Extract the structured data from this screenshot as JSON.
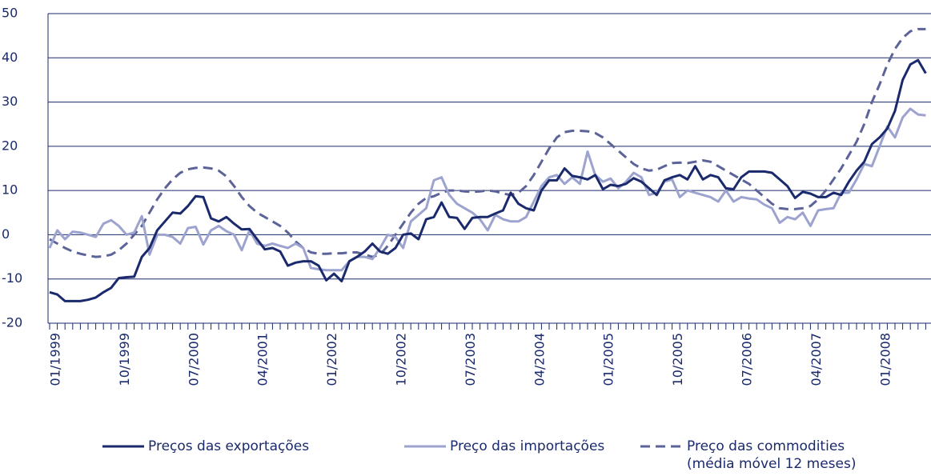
{
  "chart_data": {
    "type": "line",
    "categories": [
      "01/1999",
      null,
      null,
      null,
      null,
      null,
      null,
      null,
      null,
      "10/1999",
      null,
      null,
      null,
      null,
      null,
      null,
      null,
      null,
      "07/2000",
      null,
      null,
      null,
      null,
      null,
      null,
      null,
      null,
      "04/2001",
      null,
      null,
      null,
      null,
      null,
      null,
      null,
      null,
      "01/2002",
      null,
      null,
      null,
      null,
      null,
      null,
      null,
      null,
      "10/2002",
      null,
      null,
      null,
      null,
      null,
      null,
      null,
      null,
      "07/2003",
      null,
      null,
      null,
      null,
      null,
      null,
      null,
      null,
      "04/2004",
      null,
      null,
      null,
      null,
      null,
      null,
      null,
      null,
      "01/2005",
      null,
      null,
      null,
      null,
      null,
      null,
      null,
      null,
      "10/2005",
      null,
      null,
      null,
      null,
      null,
      null,
      null,
      null,
      "07/2006",
      null,
      null,
      null,
      null,
      null,
      null,
      null,
      null,
      "04/2007",
      null,
      null,
      null,
      null,
      null,
      null,
      null,
      null,
      "01/2008",
      null,
      null,
      null,
      null,
      null,
      null
    ],
    "series": [
      {
        "name": "Preços das exportações",
        "color": "#1a2a6c",
        "dash": false,
        "values": [
          -13,
          -13.5,
          -15,
          -15,
          -15,
          -14.7,
          -14.2,
          -13,
          -12,
          -9.8,
          -9.6,
          -9.5,
          -5,
          -3,
          1,
          3,
          5,
          4.8,
          6.5,
          8.7,
          8.5,
          3.7,
          3,
          4,
          2.5,
          1.2,
          1.3,
          -1,
          -3.3,
          -3,
          -3.8,
          -7,
          -6.3,
          -6,
          -6,
          -7,
          -10.3,
          -8.8,
          -10.5,
          -6,
          -5,
          -3.8,
          -2,
          -3.8,
          -4.3,
          -3,
          0,
          0.3,
          -1,
          3.5,
          4,
          7.3,
          4,
          3.8,
          1.3,
          3.8,
          4,
          4,
          4.8,
          5.5,
          9.5,
          7,
          6,
          5.5,
          10,
          12.3,
          12.3,
          15,
          13.3,
          13,
          12.5,
          13.5,
          10.3,
          11.3,
          11,
          11.5,
          12.8,
          12,
          10.5,
          9,
          12.3,
          13,
          13.5,
          12.5,
          15.5,
          12.5,
          13.5,
          13,
          10.5,
          10.3,
          13,
          14.3,
          14.3,
          14.3,
          14,
          12.5,
          11,
          8.3,
          9.7,
          9.3,
          8.5,
          8.5,
          9.5,
          9,
          12,
          14.5,
          16.5,
          20.5,
          22,
          24,
          28,
          35,
          38.5,
          39.5,
          36.5
        ]
      },
      {
        "name": "Preço das importações",
        "color": "#9da3cf",
        "dash": false,
        "values": [
          -3,
          1,
          -1,
          0.7,
          0.5,
          0,
          -0.5,
          2.5,
          3.3,
          2,
          0,
          0.5,
          4.2,
          -4.5,
          0,
          0,
          -0.5,
          -2,
          1.5,
          1.8,
          -2.2,
          1,
          2,
          0.8,
          0,
          -3.5,
          1,
          -2,
          -2.5,
          -2,
          -2.5,
          -3,
          -2,
          -3,
          -7.5,
          -7.8,
          -8,
          -8,
          -8,
          -6,
          -5,
          -5,
          -5.5,
          -3,
          0,
          -0.5,
          -3,
          3,
          4.5,
          6,
          12.3,
          13,
          9,
          7,
          6,
          5,
          3.5,
          1,
          4.5,
          3.5,
          3,
          3,
          4,
          7.5,
          11,
          13,
          13.5,
          11.5,
          13,
          11.5,
          18.8,
          13.5,
          12,
          12.7,
          10.5,
          12,
          14,
          13,
          9,
          9.5,
          12,
          12.5,
          8.5,
          10,
          9.5,
          9,
          8.5,
          7.5,
          10,
          7.5,
          8.5,
          8.2,
          8,
          6.8,
          6,
          2.7,
          4,
          3.5,
          5,
          2,
          5.5,
          5.8,
          6,
          9.5,
          9.5,
          12.5,
          16,
          15.5,
          20,
          24.5,
          22,
          26.5,
          28.5,
          27.2,
          27
        ]
      },
      {
        "name": "Preço das commodities (média móvel 12 meses)",
        "color": "#5c6398",
        "dash": true,
        "values": [
          -1,
          -2,
          -3,
          -3.8,
          -4.3,
          -4.7,
          -5,
          -4.9,
          -4.5,
          -3.5,
          -2,
          0,
          2,
          5,
          8,
          10.5,
          12.5,
          14,
          14.8,
          15.1,
          15.2,
          15,
          14.5,
          13.2,
          11,
          8.5,
          6.5,
          5,
          4,
          3,
          2,
          0.5,
          -1.5,
          -3,
          -4,
          -4.3,
          -4.3,
          -4.2,
          -4.2,
          -4,
          -4,
          -4.5,
          -5,
          -4.5,
          -2.5,
          0,
          2.5,
          5,
          7,
          8.3,
          8.7,
          9.5,
          10,
          10,
          9.8,
          9.7,
          9.8,
          10,
          9.8,
          9.3,
          9,
          9.5,
          11,
          13.5,
          16.5,
          19.5,
          22,
          23.2,
          23.5,
          23.5,
          23.4,
          23,
          22,
          20.5,
          19,
          17.5,
          16,
          15,
          14.5,
          14.7,
          15.5,
          16.2,
          16.3,
          16.2,
          16.5,
          16.8,
          16.5,
          15.5,
          14.5,
          13.5,
          12.5,
          11.5,
          10,
          8.5,
          7,
          6,
          5.8,
          5.8,
          6,
          6.5,
          8,
          10,
          12.5,
          15,
          18,
          21,
          25,
          30,
          34,
          38.5,
          42,
          44.5,
          46,
          46.5,
          46.5
        ]
      }
    ],
    "ylim": [
      -20,
      50
    ],
    "yticks": [
      -20,
      -10,
      0,
      10,
      20,
      30,
      40,
      50
    ],
    "grid": true
  }
}
